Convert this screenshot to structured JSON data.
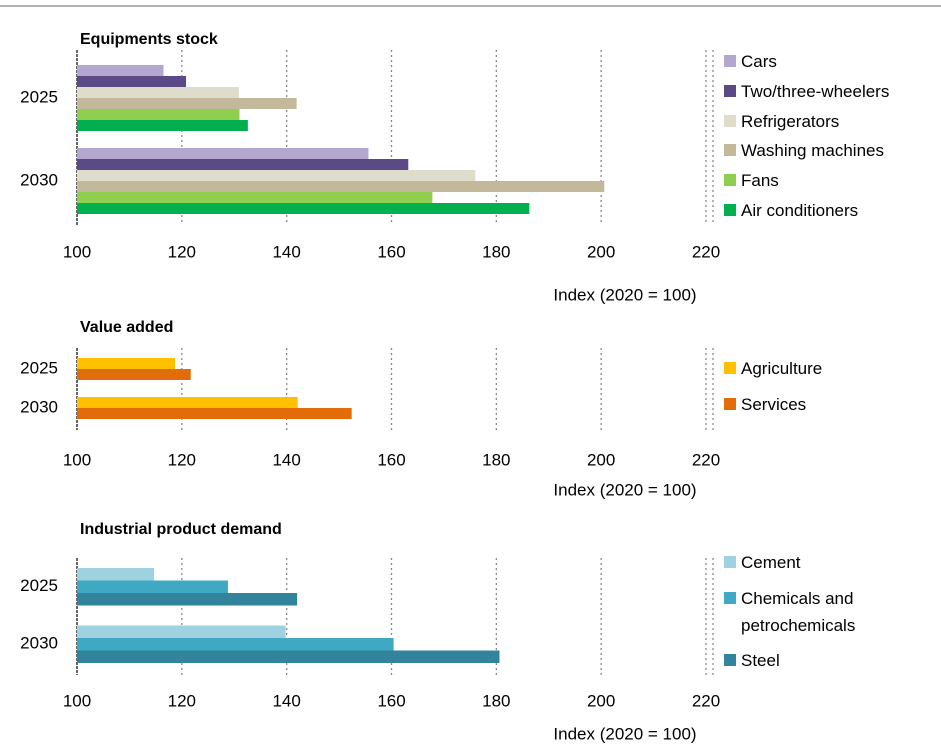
{
  "chart_data": [
    {
      "type": "bar",
      "title": "Equipments stock",
      "categories": [
        "2025",
        "2030"
      ],
      "xlabel": "Index (2020 = 100)",
      "xlim": [
        100,
        220
      ],
      "xticks": [
        100,
        120,
        140,
        160,
        180,
        200,
        220
      ],
      "grid": true,
      "series": [
        {
          "name": "Cars",
          "color": "#b4a7cf",
          "values": [
            116.5,
            155.6
          ]
        },
        {
          "name": "Two/three-wheelers",
          "color": "#5b4a86",
          "values": [
            120.8,
            163.2
          ]
        },
        {
          "name": "Refrigerators",
          "color": "#e0dccb",
          "values": [
            130.9,
            176
          ]
        },
        {
          "name": "Washing machines",
          "color": "#c3b99a",
          "values": [
            141.9,
            200.6
          ]
        },
        {
          "name": "Fans",
          "color": "#8fcf4f",
          "values": [
            131,
            167.8
          ]
        },
        {
          "name": "Air conditioners",
          "color": "#00b04f",
          "values": [
            132.6,
            186.3
          ]
        }
      ]
    },
    {
      "type": "bar",
      "title": "Value added",
      "categories": [
        "2025",
        "2030"
      ],
      "xlabel": "Index (2020 = 100)",
      "xlim": [
        100,
        220
      ],
      "xticks": [
        100,
        120,
        140,
        160,
        180,
        200,
        220
      ],
      "grid": true,
      "series": [
        {
          "name": "Agriculture",
          "color": "#ffc000",
          "values": [
            118.7,
            142.1
          ]
        },
        {
          "name": "Services",
          "color": "#e36c0a",
          "values": [
            121.7,
            152.4
          ]
        }
      ]
    },
    {
      "type": "bar",
      "title": "Industrial product demand",
      "categories": [
        "2025",
        "2030"
      ],
      "xlabel": "Index (2020 = 100)",
      "xlim": [
        100,
        220
      ],
      "xticks": [
        100,
        120,
        140,
        160,
        180,
        200,
        220
      ],
      "grid": true,
      "series": [
        {
          "name": "Cement",
          "color": "#9fd2e0",
          "values": [
            114.7,
            139.8
          ]
        },
        {
          "name": "Chemicals and petrochemicals",
          "color": "#3fa9c3",
          "values": [
            128.8,
            160.4
          ]
        },
        {
          "name": "Steel",
          "color": "#31849b",
          "values": [
            142,
            180.6
          ]
        }
      ]
    }
  ]
}
